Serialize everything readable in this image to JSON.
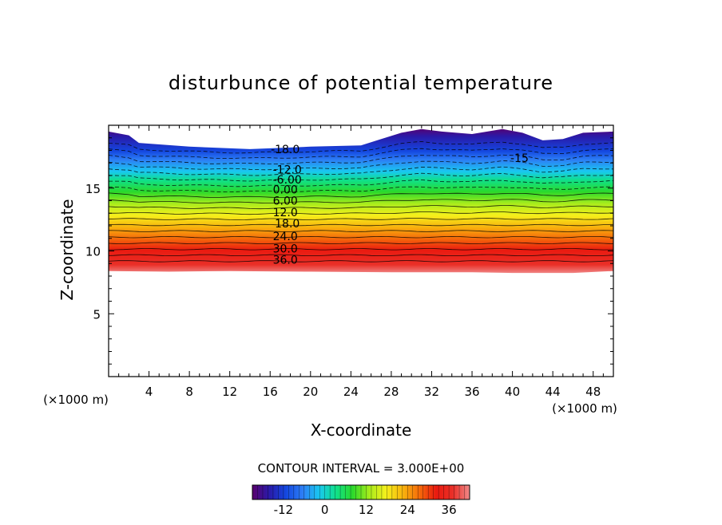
{
  "chart_data": {
    "type": "heatmap",
    "title": "disturbunce of potential temperature",
    "xlabel": "X-coordinate",
    "ylabel": "Z-coordinate",
    "x_unit": "(×1000 m)",
    "z_unit": "(×1000 m)",
    "xlim": [
      0,
      50
    ],
    "ylim": [
      0,
      20
    ],
    "x_ticks": [
      "4",
      "8",
      "12",
      "16",
      "20",
      "24",
      "28",
      "32",
      "36",
      "40",
      "44",
      "48"
    ],
    "y_ticks": [
      "5",
      "10",
      "15"
    ],
    "contour_interval_label": "CONTOUR INTERVAL = 3.000E+00",
    "contour_labels": [
      {
        "text": "-18.0",
        "x": 17.5,
        "z": 17.9
      },
      {
        "text": "-12.0",
        "x": 17.7,
        "z": 16.3
      },
      {
        "text": "-6.00",
        "x": 17.7,
        "z": 15.5
      },
      {
        "text": "0.00",
        "x": 17.5,
        "z": 14.7
      },
      {
        "text": "6.00",
        "x": 17.5,
        "z": 13.8
      },
      {
        "text": "12.0",
        "x": 17.5,
        "z": 12.9
      },
      {
        "text": "18.0",
        "x": 17.7,
        "z": 12.0
      },
      {
        "text": "24.0",
        "x": 17.5,
        "z": 11.0
      },
      {
        "text": "30.0",
        "x": 17.5,
        "z": 10.0
      },
      {
        "text": "36.0",
        "x": 17.5,
        "z": 9.1
      },
      {
        "text": "-15",
        "x": 40.7,
        "z": 17.2
      }
    ],
    "field_range": [
      -21,
      42
    ],
    "colorbar": {
      "min": -21,
      "max": 42,
      "tick_values": [
        -12,
        0,
        12,
        24,
        36
      ],
      "tick_labels": [
        "-12",
        "0",
        "12",
        "24",
        "36"
      ]
    },
    "top_boundary": [
      [
        0,
        19.5
      ],
      [
        2,
        19.2
      ],
      [
        3,
        18.6
      ],
      [
        8,
        18.3
      ],
      [
        14,
        18.1
      ],
      [
        20,
        18.3
      ],
      [
        25,
        18.4
      ],
      [
        27,
        18.9
      ],
      [
        29,
        19.4
      ],
      [
        31,
        19.7
      ],
      [
        33,
        19.5
      ],
      [
        36,
        19.3
      ],
      [
        39,
        19.7
      ],
      [
        41,
        19.4
      ],
      [
        43,
        18.8
      ],
      [
        45,
        18.9
      ],
      [
        47,
        19.4
      ],
      [
        50,
        19.5
      ]
    ],
    "bottom_boundary": [
      [
        0,
        8.4
      ],
      [
        6,
        8.35
      ],
      [
        12,
        8.4
      ],
      [
        20,
        8.35
      ],
      [
        28,
        8.3
      ],
      [
        36,
        8.3
      ],
      [
        40,
        8.25
      ],
      [
        46,
        8.25
      ],
      [
        50,
        8.4
      ]
    ]
  },
  "colors": {
    "ramp": [
      "#5a006e",
      "#2a1aa8",
      "#1447e0",
      "#2d7ef5",
      "#19c8f0",
      "#10e08a",
      "#2bd92b",
      "#a8ec1c",
      "#f5f01c",
      "#f8b40e",
      "#f56a0a",
      "#ea1a10",
      "#ea3028",
      "#f08a8a"
    ],
    "contour_line": "#000000"
  }
}
